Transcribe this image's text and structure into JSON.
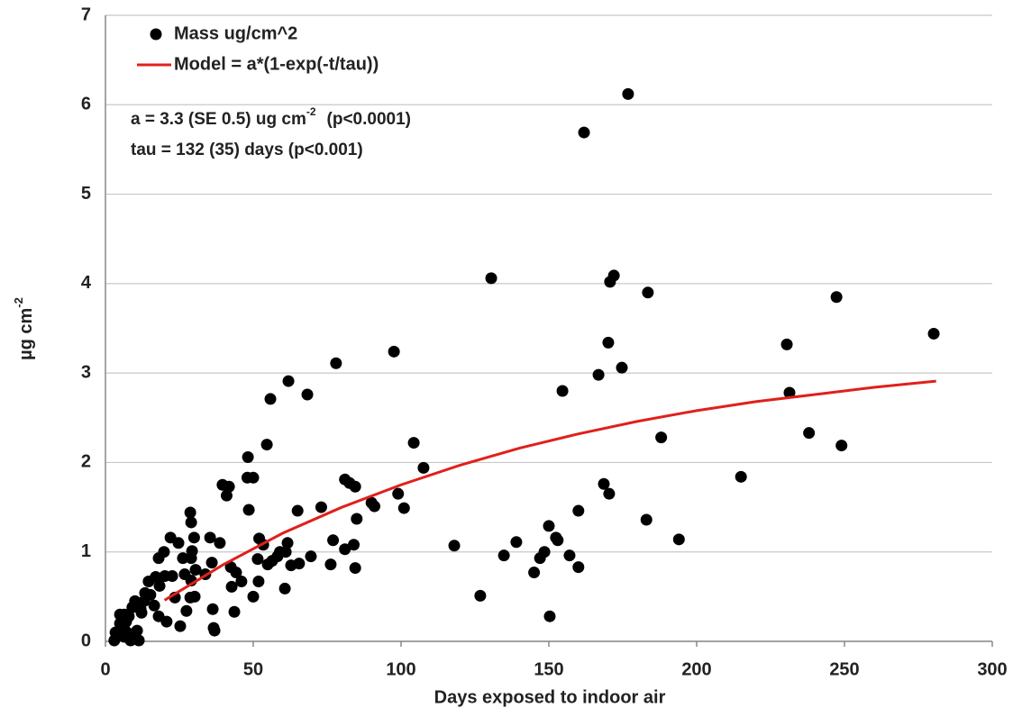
{
  "chart_data": {
    "type": "scatter",
    "x_label": "Days exposed to indoor air",
    "y_label": "µg cm",
    "y_label_sup": "-2",
    "annotations": [
      {
        "text": "a = 3.3 (SE 0.5) ug cm",
        "sup": "-2",
        "tail": "(p<0.0001)"
      },
      {
        "text": "tau = 132 (35) days  (p<0.001)"
      }
    ],
    "xlim": [
      0,
      300
    ],
    "xticks": [
      0,
      50,
      100,
      150,
      200,
      250,
      300
    ],
    "ylim": [
      0,
      7
    ],
    "yticks": [
      0,
      1,
      2,
      3,
      4,
      5,
      6,
      7
    ],
    "grid": true,
    "legend": "top-left",
    "series": [
      {
        "name": "Mass ug/cm^2",
        "color": "#000000",
        "marker": "circle",
        "x": [
          176.8,
          161.9,
          130.5,
          172,
          170.7,
          183.5,
          247.3,
          280.2,
          230.5,
          170.1,
          97.6,
          78,
          61.9,
          55.8,
          68.3,
          174.7,
          166.8,
          154.6,
          231.4,
          188,
          238,
          249,
          54.6,
          104.3,
          48.2,
          107.6,
          215,
          48,
          50,
          81,
          82.6,
          84.5,
          39.6,
          41.8,
          41,
          168.6,
          170.4,
          99,
          90,
          91,
          101,
          73,
          65,
          48.5,
          160,
          85,
          183,
          150,
          28.7,
          29,
          22,
          24.7,
          35.4,
          38.7,
          30,
          52,
          53.4,
          61.6,
          77,
          84,
          81,
          118,
          139,
          194,
          152.4,
          153,
          148.5,
          147,
          157,
          134.8,
          160,
          145,
          126.8,
          150.3,
          69.5,
          65.5,
          62.8,
          56.4,
          58.2,
          54.9,
          59,
          61,
          51.5,
          84.5,
          76.2,
          60.7,
          50,
          46,
          51.8,
          44.2,
          42.4,
          36,
          33.8,
          42.7,
          43.6,
          36.3,
          36.6,
          36.9,
          29,
          29.3,
          30.5,
          29,
          26.2,
          26.8,
          19.8,
          18,
          22.6,
          20.1,
          17,
          18.3,
          14.6,
          15.2,
          16.5,
          18,
          20.7,
          27.4,
          25.3,
          28.7,
          30.2,
          23.5,
          13.4,
          13.1,
          10,
          12.2,
          9.1,
          7.9,
          6.4,
          4.9,
          4.9,
          7,
          3.4,
          3,
          6.7,
          8.8,
          10.7,
          11.3,
          8.5,
          6.4,
          11.9
        ],
        "values": [
          6.12,
          5.69,
          4.06,
          4.09,
          4.02,
          3.9,
          3.85,
          3.44,
          3.32,
          3.34,
          3.24,
          3.11,
          2.91,
          2.71,
          2.76,
          3.06,
          2.98,
          2.8,
          2.78,
          2.28,
          2.33,
          2.19,
          2.2,
          2.22,
          2.06,
          1.94,
          1.84,
          1.83,
          1.83,
          1.81,
          1.77,
          1.73,
          1.75,
          1.73,
          1.63,
          1.76,
          1.65,
          1.65,
          1.55,
          1.51,
          1.49,
          1.5,
          1.46,
          1.47,
          1.46,
          1.37,
          1.36,
          1.29,
          1.44,
          1.33,
          1.16,
          1.1,
          1.16,
          1.1,
          1.16,
          1.15,
          1.08,
          1.1,
          1.13,
          1.08,
          1.03,
          1.07,
          1.11,
          1.14,
          1.16,
          1.13,
          1.0,
          0.93,
          0.96,
          0.96,
          0.83,
          0.77,
          0.51,
          0.28,
          0.95,
          0.87,
          0.85,
          0.9,
          0.95,
          0.86,
          1.0,
          1.0,
          0.92,
          0.82,
          0.86,
          0.59,
          0.5,
          0.67,
          0.67,
          0.77,
          0.83,
          0.88,
          0.75,
          0.61,
          0.33,
          0.36,
          0.15,
          0.12,
          0.93,
          1.01,
          0.8,
          0.68,
          0.93,
          0.75,
          1.0,
          0.93,
          0.73,
          0.73,
          0.72,
          0.62,
          0.67,
          0.52,
          0.4,
          0.28,
          0.22,
          0.34,
          0.17,
          0.49,
          0.5,
          0.49,
          0.54,
          0.45,
          0.45,
          0.32,
          0.38,
          0.28,
          0.3,
          0.3,
          0.2,
          0.22,
          0.1,
          0.01,
          0.12,
          0.08,
          0.12,
          0.01,
          0.01,
          0.05,
          0.36
        ]
      },
      {
        "name": "Model = a*(1-exp(-t/tau))",
        "color": "#e0201b",
        "marker": "line",
        "x": [
          20,
          40,
          60,
          80,
          100,
          120,
          140,
          160,
          180,
          200,
          220,
          240,
          260,
          281
        ],
        "values": [
          0.46,
          0.86,
          1.21,
          1.5,
          1.75,
          1.97,
          2.16,
          2.32,
          2.46,
          2.58,
          2.68,
          2.76,
          2.84,
          2.91
        ]
      }
    ]
  }
}
